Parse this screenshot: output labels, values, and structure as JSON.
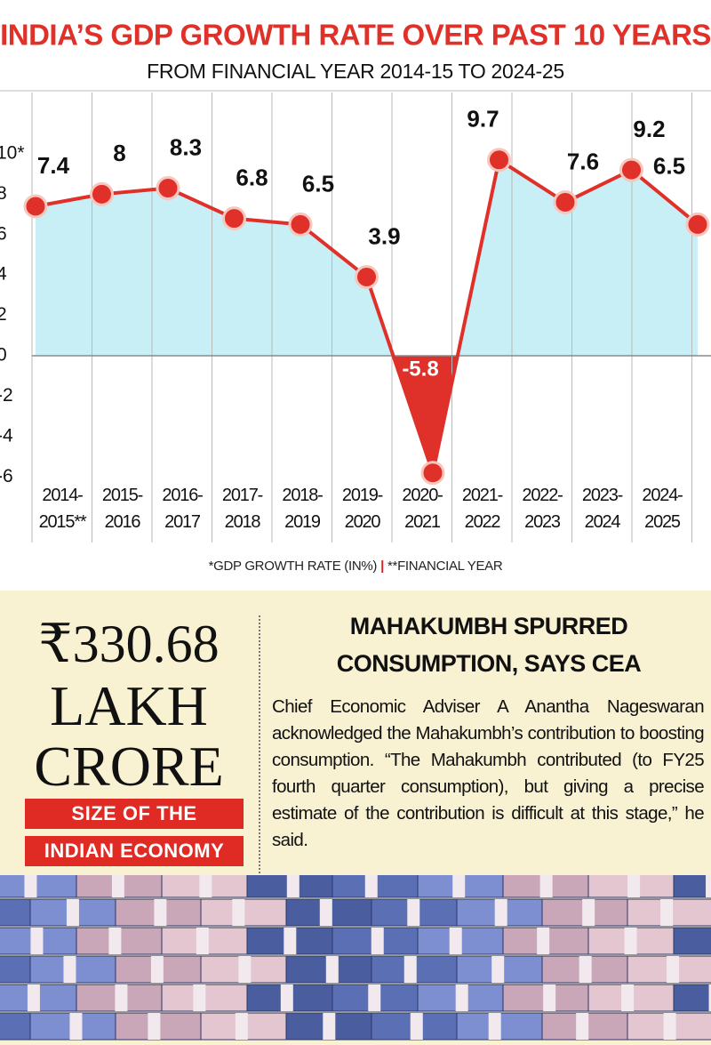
{
  "chart_data": {
    "type": "line",
    "title": "INDIA’S GDP GROWTH RATE OVER PAST 10 YEARS",
    "subtitle": "FROM FINANCIAL YEAR 2014-15 TO 2024-25",
    "categories": [
      "2014-\n2015**",
      "2015-\n2016",
      "2016-\n2017",
      "2017-\n2018",
      "2018-\n2019",
      "2019-\n2020",
      "2020-\n2021",
      "2021-\n2022",
      "2022-\n2023",
      "2023-\n2024",
      "2024-\n2025"
    ],
    "series": [
      {
        "name": "GDP growth rate",
        "color": "#e0302a",
        "values": [
          7.4,
          8,
          8.3,
          6.8,
          6.5,
          3.9,
          -5.8,
          9.7,
          7.6,
          9.2,
          6.5
        ]
      }
    ],
    "area_color": "#c8eef6",
    "ylim": [
      -6.5,
      10.5
    ],
    "yticks": [
      {
        "value": 10,
        "label": "10*"
      },
      8,
      6,
      4,
      2,
      0,
      -2,
      -4,
      -6
    ],
    "notes": [
      "*GDP GROWTH RATE (IN%)",
      "**FINANCIAL YEAR"
    ]
  },
  "stat": {
    "amount": "₹330.68",
    "unit_1": "LAKH",
    "unit_2": "CRORE",
    "caption_1": "SIZE OF THE",
    "caption_2": "INDIAN ECONOMY"
  },
  "article": {
    "headline_1": "MAHAKUMBH SPURRED",
    "headline_2": "CONSUMPTION, SAYS CEA",
    "body": "Chief Economic Adviser A Anantha Nageswaran acknowledged the Mahakumbh’s contribution to boosting consumption. “The Mahakumbh contributed (to FY25 fourth quarter consumption), but giving a precise estimate of the contribution is difficult at this stage,” he said."
  }
}
